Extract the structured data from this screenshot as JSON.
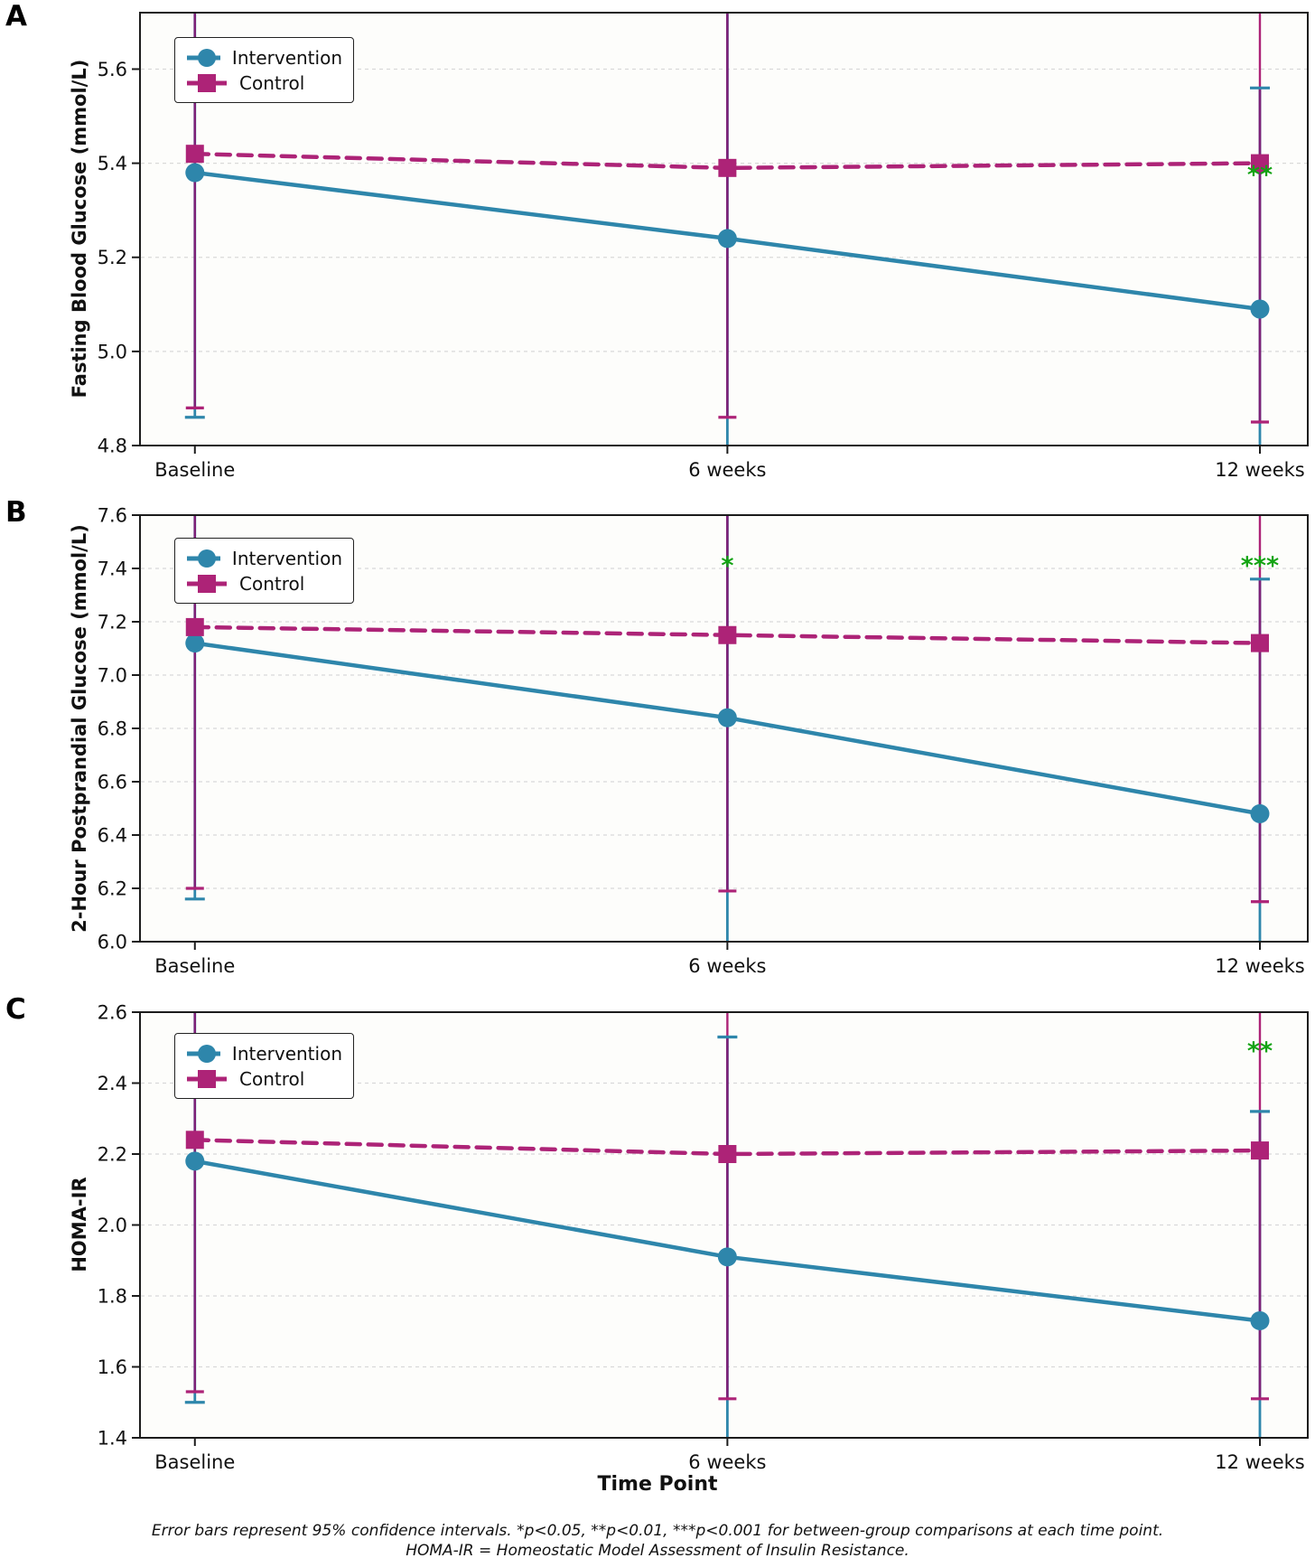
{
  "xlabel": "Time Point",
  "legend": {
    "items": [
      {
        "label": "Intervention"
      },
      {
        "label": "Control"
      }
    ]
  },
  "captions": {
    "line1": "Error bars represent 95% confidence intervals. *p<0.05, **p<0.01, ***p<0.001 for between-group comparisons at each time point.",
    "line2": "HOMA-IR = Homeostatic Model Assessment of Insulin Resistance."
  },
  "colors": {
    "intervention": "#2E86AB",
    "control": "#AD2377",
    "ci_overlap": "#7D2077",
    "significance": "#12A312",
    "grid": "#d9d9d9",
    "axis": "#1c1c1c"
  },
  "chart_data": [
    {
      "type": "line",
      "panel_label": "A",
      "ylabel": "Fasting Blood Glucose (mmol/L)",
      "categories": [
        "Baseline",
        "6 weeks",
        "12 weeks"
      ],
      "ylim": [
        4.8,
        5.72
      ],
      "yticks": [
        4.8,
        5.0,
        5.2,
        5.4,
        5.6
      ],
      "grid": true,
      "legend_position": "upper-left",
      "series": [
        {
          "name": "Intervention",
          "marker": "circle",
          "line_style": "solid",
          "values": [
            5.38,
            5.24,
            5.09
          ],
          "ci_lower_caps": [
            4.86,
            null,
            null
          ],
          "ci_upper_caps": [
            null,
            null,
            5.56
          ]
        },
        {
          "name": "Control",
          "marker": "square",
          "line_style": "dashed",
          "values": [
            5.42,
            5.39,
            5.4
          ],
          "ci_lower_caps": [
            4.88,
            4.86,
            4.85
          ],
          "ci_upper_caps": [
            null,
            null,
            null
          ]
        }
      ],
      "significance": [
        {
          "category_index": 2,
          "y": 5.375,
          "text": "**"
        }
      ]
    },
    {
      "type": "line",
      "panel_label": "B",
      "ylabel": "2-Hour Postprandial Glucose (mmol/L)",
      "categories": [
        "Baseline",
        "6 weeks",
        "12 weeks"
      ],
      "ylim": [
        6.0,
        7.6
      ],
      "yticks": [
        6.0,
        6.2,
        6.4,
        6.6,
        6.8,
        7.0,
        7.2,
        7.4,
        7.6
      ],
      "grid": true,
      "legend_position": "upper-left",
      "series": [
        {
          "name": "Intervention",
          "marker": "circle",
          "line_style": "solid",
          "values": [
            7.12,
            6.84,
            6.48
          ],
          "ci_lower_caps": [
            6.16,
            null,
            null
          ],
          "ci_upper_caps": [
            null,
            null,
            7.36
          ]
        },
        {
          "name": "Control",
          "marker": "square",
          "line_style": "dashed",
          "values": [
            7.18,
            7.15,
            7.12
          ],
          "ci_lower_caps": [
            6.2,
            6.19,
            6.15
          ],
          "ci_upper_caps": [
            null,
            null,
            null
          ]
        }
      ],
      "significance": [
        {
          "category_index": 1,
          "y": 7.41,
          "text": "*"
        },
        {
          "category_index": 2,
          "y": 7.41,
          "text": "***"
        }
      ]
    },
    {
      "type": "line",
      "panel_label": "C",
      "ylabel": "HOMA-IR",
      "categories": [
        "Baseline",
        "6 weeks",
        "12 weeks"
      ],
      "ylim": [
        1.4,
        2.6
      ],
      "yticks": [
        1.4,
        1.6,
        1.8,
        2.0,
        2.2,
        2.4,
        2.6
      ],
      "grid": true,
      "legend_position": "upper-left",
      "series": [
        {
          "name": "Intervention",
          "marker": "circle",
          "line_style": "solid",
          "values": [
            2.18,
            1.91,
            1.73
          ],
          "ci_lower_caps": [
            1.5,
            null,
            null
          ],
          "ci_upper_caps": [
            null,
            2.53,
            2.32
          ]
        },
        {
          "name": "Control",
          "marker": "square",
          "line_style": "dashed",
          "values": [
            2.24,
            2.2,
            2.21
          ],
          "ci_lower_caps": [
            1.53,
            1.51,
            1.51
          ],
          "ci_upper_caps": [
            null,
            null,
            null
          ]
        }
      ],
      "significance": [
        {
          "category_index": 2,
          "y": 2.49,
          "text": "**"
        }
      ]
    }
  ]
}
